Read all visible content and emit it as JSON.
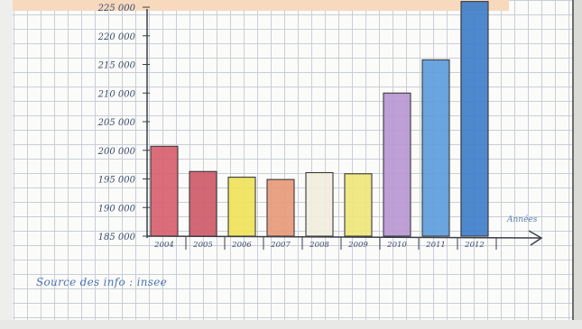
{
  "chart_data": {
    "type": "bar",
    "title": "",
    "xlabel": "Années",
    "ylabel": "",
    "categories": [
      "2004",
      "2005",
      "2006",
      "2007",
      "2008",
      "2009",
      "2010",
      "2011",
      "2012"
    ],
    "values": [
      200700,
      196300,
      195300,
      194900,
      196100,
      195900,
      210000,
      215800,
      226000
    ],
    "colors": [
      "#d85f6e",
      "#cf5b69",
      "#efe35a",
      "#e79a79",
      "#f1eedd",
      "#eee67a",
      "#b997d2",
      "#5d9ddc",
      "#3f7ec9"
    ],
    "ylim": [
      185000,
      225000
    ],
    "yticks": [
      185000,
      190000,
      195000,
      200000,
      205000,
      210000,
      215000,
      220000,
      225000
    ],
    "ytick_labels": [
      "185 000",
      "190 000",
      "195 000",
      "200 000",
      "205 000",
      "210 000",
      "215 000",
      "220 000",
      "225 000"
    ],
    "grid": true,
    "legend": "none",
    "source_note": "Source des info : insee"
  }
}
